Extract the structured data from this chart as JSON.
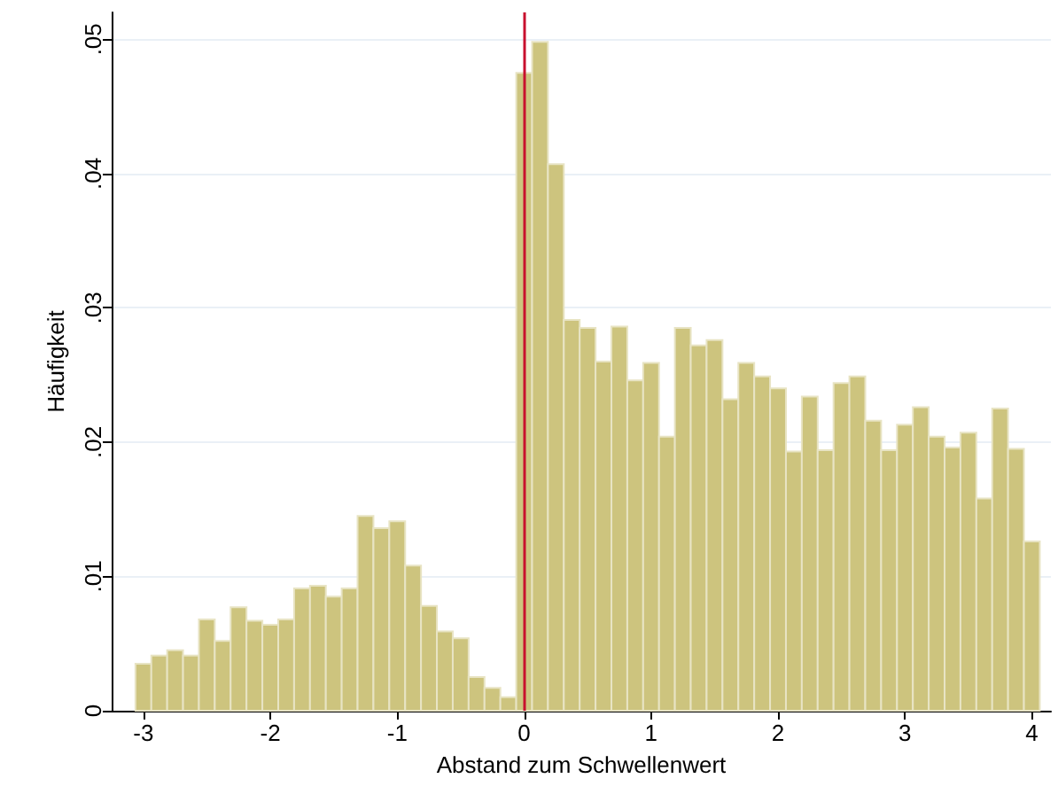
{
  "chart_data": {
    "type": "histogram",
    "xlabel": "Abstand zum Schwellenwert",
    "ylabel": "Häufigkeit",
    "bins": [
      -3.0625,
      -2.9375,
      -2.8125,
      -2.6875,
      -2.5625,
      -2.4375,
      -2.3125,
      -2.1875,
      -2.0625,
      -1.9375,
      -1.8125,
      -1.6875,
      -1.5625,
      -1.4375,
      -1.3125,
      -1.1875,
      -1.0625,
      -0.9375,
      -0.8125,
      -0.6875,
      -0.5625,
      -0.4375,
      -0.3125,
      -0.1875,
      -0.0625,
      0.0625,
      0.1875,
      0.3125,
      0.4375,
      0.5625,
      0.6875,
      0.8125,
      0.9375,
      1.0625,
      1.1875,
      1.3125,
      1.4375,
      1.5625,
      1.6875,
      1.8125,
      1.9375,
      2.0625,
      2.1875,
      2.3125,
      2.4375,
      2.5625,
      2.6875,
      2.8125,
      2.9375,
      3.0625,
      3.1875,
      3.3125,
      3.4375,
      3.5625,
      3.6875,
      3.8125,
      3.9375,
      4.0625
    ],
    "values": [
      0.0035,
      0.0041,
      0.0045,
      0.0041,
      0.0068,
      0.0052,
      0.0077,
      0.0067,
      0.0064,
      0.0068,
      0.0091,
      0.0093,
      0.0085,
      0.0091,
      0.0145,
      0.0136,
      0.0141,
      0.0108,
      0.0078,
      0.0059,
      0.0054,
      0.0025,
      0.0017,
      0.001,
      0.0475,
      0.0498,
      0.0407,
      0.0291,
      0.0285,
      0.026,
      0.0286,
      0.0246,
      0.0259,
      0.0204,
      0.0285,
      0.0272,
      0.0276,
      0.0232,
      0.0259,
      0.0249,
      0.024,
      0.0193,
      0.0234,
      0.0194,
      0.0244,
      0.0249,
      0.0216,
      0.0194,
      0.0213,
      0.0226,
      0.0204,
      0.0196,
      0.0207,
      0.0158,
      0.0225,
      0.0195,
      0.0126
    ],
    "color": "#cdc47e",
    "xlim": [
      -3.25,
      4.15
    ],
    "xticks": [
      -3,
      -2,
      -1,
      0,
      1,
      2,
      3,
      4
    ],
    "ylim": [
      0,
      0.052
    ],
    "yticks": [
      0,
      {
        "value": 0.01,
        "label": ".01"
      },
      {
        "value": 0.02,
        "label": ".02"
      },
      {
        "value": 0.03,
        "label": ".03"
      },
      {
        "value": 0.04,
        "label": ".04"
      },
      {
        "value": 0.05,
        "label": ".05"
      }
    ],
    "ref_lines": [
      {
        "axis": "x",
        "value": 0,
        "color": "#c8102e"
      }
    ],
    "grid": "y"
  }
}
